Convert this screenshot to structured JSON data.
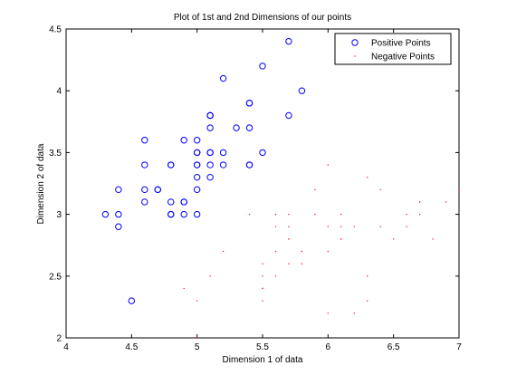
{
  "chart_data": {
    "type": "scatter",
    "title": "Plot of 1st and 2nd Dimensions of our points",
    "xlabel": "Dimension 1 of data",
    "ylabel": "Dimension 2 of data",
    "xlim": [
      4,
      7
    ],
    "ylim": [
      2,
      4.5
    ],
    "xticks": [
      "4",
      "4.5",
      "5",
      "5.5",
      "6",
      "6.5",
      "7"
    ],
    "yticks": [
      "2",
      "2.5",
      "3",
      "3.5",
      "4",
      "4.5"
    ],
    "grid": false,
    "legend_position": "top-right",
    "series": [
      {
        "name": "Positive Points",
        "marker": "circle-open",
        "color": "#0000ff",
        "points": [
          [
            5.1,
            3.5
          ],
          [
            4.9,
            3.0
          ],
          [
            4.7,
            3.2
          ],
          [
            4.6,
            3.1
          ],
          [
            5.0,
            3.6
          ],
          [
            5.4,
            3.9
          ],
          [
            4.6,
            3.4
          ],
          [
            5.0,
            3.4
          ],
          [
            4.4,
            2.9
          ],
          [
            4.9,
            3.1
          ],
          [
            5.4,
            3.7
          ],
          [
            4.8,
            3.4
          ],
          [
            4.8,
            3.0
          ],
          [
            4.3,
            3.0
          ],
          [
            5.8,
            4.0
          ],
          [
            5.7,
            4.4
          ],
          [
            5.4,
            3.9
          ],
          [
            5.1,
            3.5
          ],
          [
            5.7,
            3.8
          ],
          [
            5.1,
            3.8
          ],
          [
            5.4,
            3.4
          ],
          [
            5.1,
            3.7
          ],
          [
            4.6,
            3.6
          ],
          [
            5.1,
            3.3
          ],
          [
            4.8,
            3.4
          ],
          [
            5.0,
            3.0
          ],
          [
            5.0,
            3.4
          ],
          [
            5.2,
            3.5
          ],
          [
            5.2,
            3.4
          ],
          [
            4.7,
            3.2
          ],
          [
            4.8,
            3.1
          ],
          [
            5.4,
            3.4
          ],
          [
            5.2,
            4.1
          ],
          [
            5.5,
            4.2
          ],
          [
            4.9,
            3.1
          ],
          [
            5.0,
            3.2
          ],
          [
            5.5,
            3.5
          ],
          [
            4.9,
            3.6
          ],
          [
            4.4,
            3.0
          ],
          [
            5.1,
            3.4
          ],
          [
            5.0,
            3.5
          ],
          [
            4.5,
            2.3
          ],
          [
            4.4,
            3.2
          ],
          [
            5.0,
            3.5
          ],
          [
            5.1,
            3.8
          ],
          [
            4.8,
            3.0
          ],
          [
            5.1,
            3.8
          ],
          [
            4.6,
            3.2
          ],
          [
            5.3,
            3.7
          ],
          [
            5.0,
            3.3
          ]
        ]
      },
      {
        "name": "Negative Points",
        "marker": "dot",
        "color": "#ff0000",
        "points": [
          [
            7.0,
            3.2
          ],
          [
            6.4,
            3.2
          ],
          [
            6.9,
            3.1
          ],
          [
            5.5,
            2.3
          ],
          [
            6.5,
            2.8
          ],
          [
            5.7,
            2.8
          ],
          [
            6.3,
            3.3
          ],
          [
            4.9,
            2.4
          ],
          [
            6.6,
            2.9
          ],
          [
            5.2,
            2.7
          ],
          [
            5.0,
            2.0
          ],
          [
            5.9,
            3.0
          ],
          [
            6.0,
            2.2
          ],
          [
            6.1,
            2.9
          ],
          [
            5.6,
            2.9
          ],
          [
            6.7,
            3.1
          ],
          [
            5.6,
            3.0
          ],
          [
            5.8,
            2.7
          ],
          [
            6.2,
            2.2
          ],
          [
            5.6,
            2.5
          ],
          [
            5.9,
            3.2
          ],
          [
            6.1,
            2.8
          ],
          [
            6.3,
            2.5
          ],
          [
            6.1,
            2.8
          ],
          [
            6.4,
            2.9
          ],
          [
            6.6,
            3.0
          ],
          [
            6.8,
            2.8
          ],
          [
            6.7,
            3.0
          ],
          [
            6.0,
            2.9
          ],
          [
            5.7,
            2.6
          ],
          [
            5.5,
            2.4
          ],
          [
            5.5,
            2.4
          ],
          [
            5.8,
            2.7
          ],
          [
            6.0,
            2.7
          ],
          [
            5.4,
            3.0
          ],
          [
            6.0,
            3.4
          ],
          [
            6.7,
            3.1
          ],
          [
            6.3,
            2.3
          ],
          [
            5.6,
            3.0
          ],
          [
            5.5,
            2.5
          ],
          [
            5.5,
            2.6
          ],
          [
            6.1,
            3.0
          ],
          [
            5.8,
            2.6
          ],
          [
            5.0,
            2.3
          ],
          [
            5.6,
            2.7
          ],
          [
            5.7,
            3.0
          ],
          [
            5.7,
            2.9
          ],
          [
            6.2,
            2.9
          ],
          [
            5.1,
            2.5
          ],
          [
            5.7,
            2.8
          ]
        ]
      }
    ]
  }
}
